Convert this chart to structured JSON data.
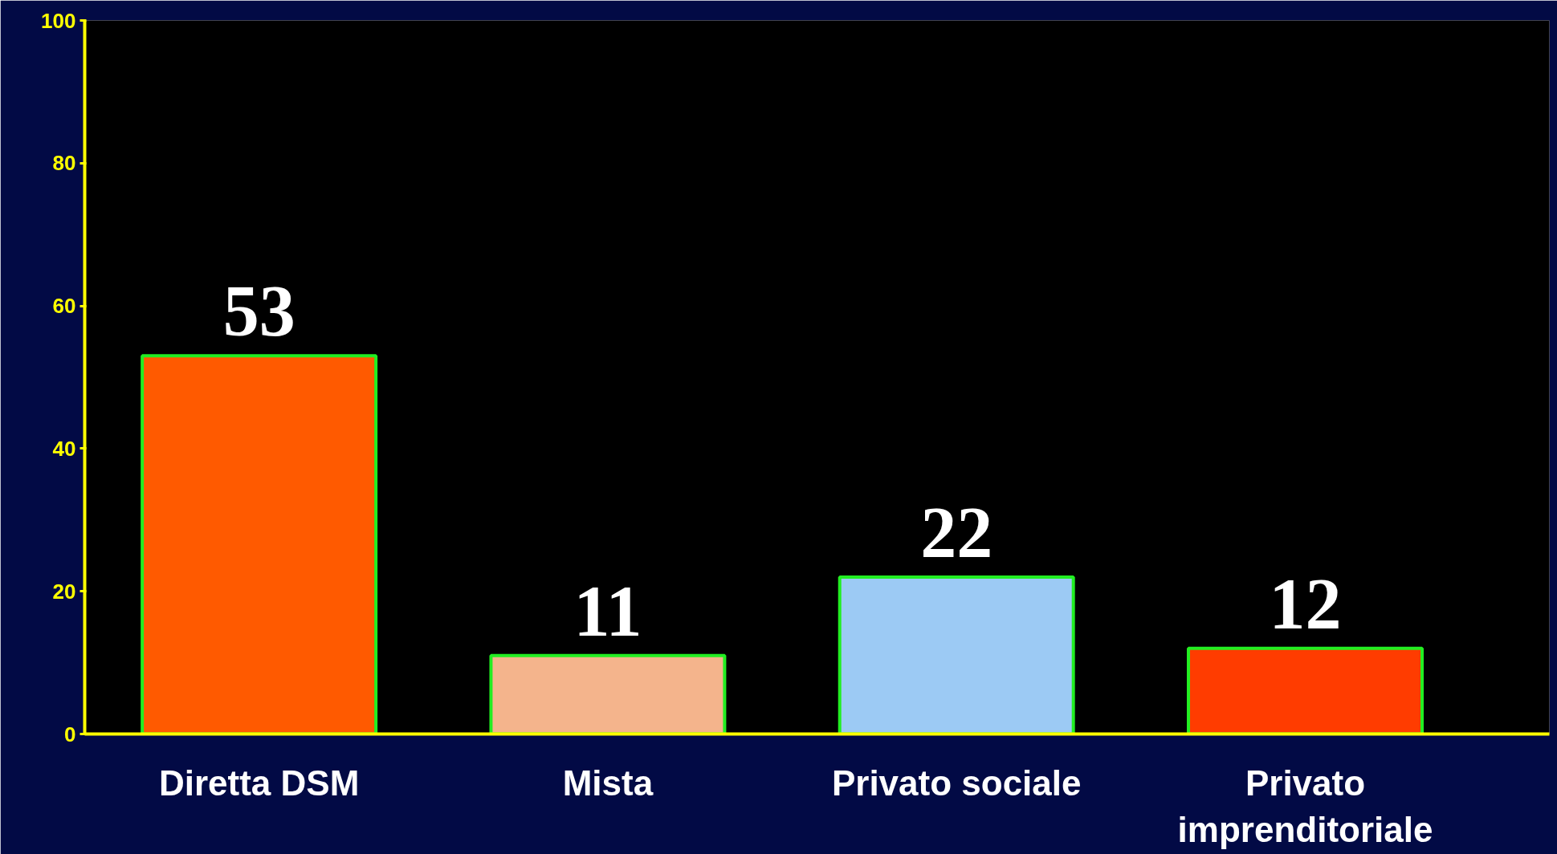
{
  "chart_data": {
    "type": "bar",
    "categories": [
      "Diretta DSM",
      "Mista",
      "Privato sociale",
      "Privato imprenditoriale"
    ],
    "values": [
      53,
      11,
      22,
      12
    ],
    "colors": [
      "#ff5a00",
      "#f4b48c",
      "#9ccaf4",
      "#ff3c00"
    ],
    "ylim": [
      0,
      100
    ],
    "yticks": [
      0,
      20,
      40,
      60,
      80,
      100
    ],
    "grid": false,
    "data_labels": true
  }
}
